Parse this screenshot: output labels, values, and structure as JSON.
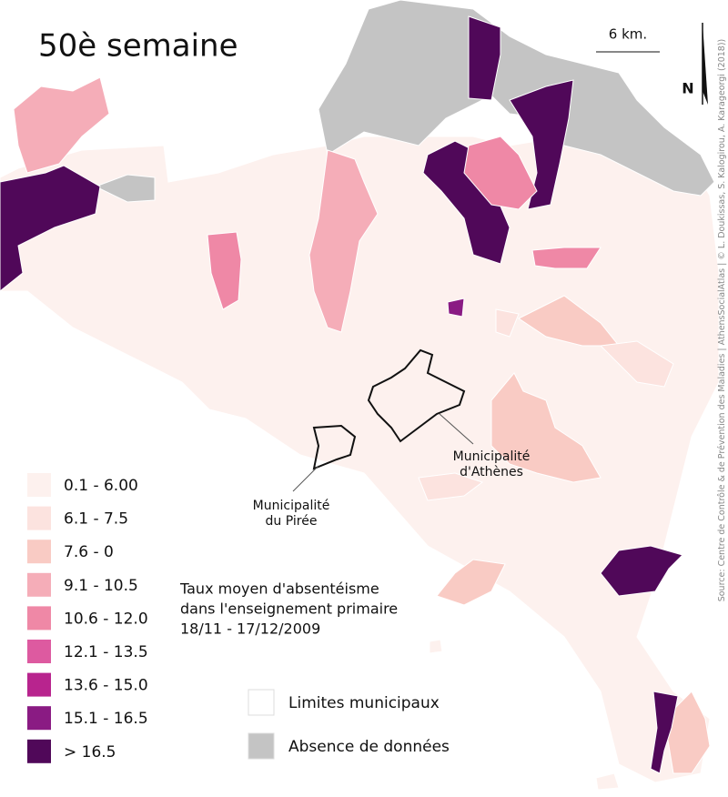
{
  "title": "50è semaine",
  "scale": "6 km.",
  "north": "N",
  "source": "Source: Centre de Contrôle & de Prévention des Maladies | AthensSocialAtlas | © L. Doukissas, S. Kalogirou, A. Karageorgi (2018))",
  "annotations": [
    {
      "lines": [
        "Municipalité",
        "d'Athènes"
      ]
    },
    {
      "lines": [
        "Municipalité",
        "du Pirée"
      ]
    }
  ],
  "legend": {
    "title_lines": [
      "Taux moyen d'absentéisme",
      "dans l'enseignement primaire",
      "18/11 - 17/12/2009"
    ],
    "classes": [
      {
        "label": "0.1 - 6.00",
        "color": "#fdf1ee"
      },
      {
        "label": "6.1 - 7.5",
        "color": "#fce3df"
      },
      {
        "label": "7.6 - 0",
        "color": "#f9cbc4"
      },
      {
        "label": "9.1 - 10.5",
        "color": "#f5adb8"
      },
      {
        "label": "10.6 - 12.0",
        "color": "#ef88a6"
      },
      {
        "label": "12.1 - 13.5",
        "color": "#dd5aa0"
      },
      {
        "label": "13.6 - 15.0",
        "color": "#b8248e"
      },
      {
        "label": "15.1 - 16.5",
        "color": "#8a1b83"
      },
      {
        "label": "> 16.5",
        "color": "#500859"
      }
    ],
    "extras": [
      {
        "label": "Limites municipaux",
        "color": "#ffffff"
      },
      {
        "label": "Absence de données",
        "color": "#c4c4c4"
      }
    ]
  }
}
